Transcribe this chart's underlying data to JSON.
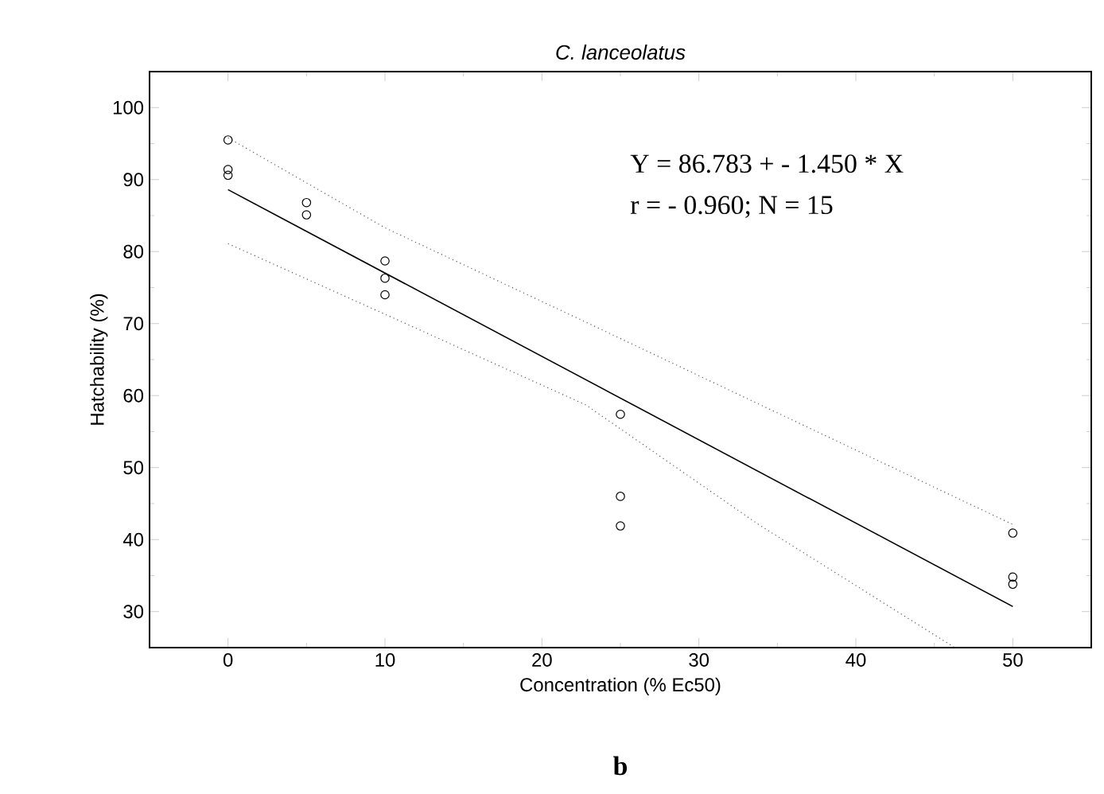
{
  "chart_data": {
    "type": "scatter",
    "title": "C. lanceolatus",
    "xlabel": "Concentration (% Ec50)",
    "ylabel": "Hatchability (%)",
    "xlim": [
      -5,
      55
    ],
    "ylim": [
      25,
      105
    ],
    "xticks": [
      0,
      10,
      20,
      30,
      40,
      50
    ],
    "yticks": [
      30,
      40,
      50,
      60,
      70,
      80,
      90,
      100
    ],
    "grid": false,
    "annotations": [
      "Y = 86.783 + - 1.450 * X",
      "r = - 0.960; N = 15",
      "b"
    ],
    "series": [
      {
        "marker": "circle",
        "color": "#000000",
        "x": [
          0,
          0,
          0,
          5,
          5,
          10,
          10,
          10,
          25,
          25,
          25,
          50,
          50,
          50
        ],
        "values": [
          95.5,
          91.4,
          90.6,
          86.8,
          85.1,
          78.7,
          76.3,
          74.0,
          57.4,
          46.0,
          41.9,
          40.9,
          34.8,
          33.8
        ]
      },
      {
        "type": "line",
        "marker": "none",
        "line_style": "solid",
        "color": "#000000",
        "x": [
          0,
          50
        ],
        "values": [
          88.6,
          30.7
        ]
      },
      {
        "type": "line",
        "marker": "none",
        "line_style": "dotted",
        "color": "#555555",
        "x": [
          0,
          10,
          22.8,
          50
        ],
        "values": [
          95.8,
          83.3,
          70.2,
          42.1
        ]
      },
      {
        "type": "line",
        "marker": "none",
        "line_style": "dotted",
        "color": "#555555",
        "x": [
          0,
          10,
          22.8,
          33.8,
          46.3
        ],
        "values": [
          81.1,
          71.3,
          58.7,
          42.1,
          25
        ]
      }
    ]
  }
}
